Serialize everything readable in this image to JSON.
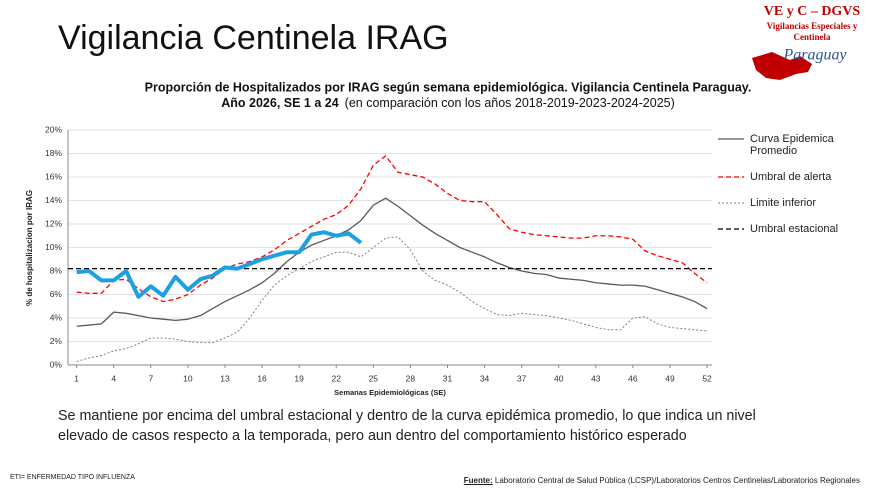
{
  "slide_title": "Vigilancia Centinela IRAG",
  "logo": {
    "name": "VE y C – DGVS",
    "line1": "Vigilancias Especiales y",
    "line2": "Centinela",
    "country": "Paraguay"
  },
  "chart_data": {
    "type": "line",
    "title": "Proporción de Hospitalizados por IRAG según semana epidemiológica. Vigilancia Centinela Paraguay.",
    "title_line2": "Año 2026, SE 1 a 24",
    "subtitle": "(en comparación con los años 2018-2019-2023-2024-2025)",
    "xlabel": "Semanas Epidemiológicas (SE)",
    "ylabel": "% de hospitalizacion por IRAG",
    "x": [
      1,
      2,
      3,
      4,
      5,
      6,
      7,
      8,
      9,
      10,
      11,
      12,
      13,
      14,
      15,
      16,
      17,
      18,
      19,
      20,
      21,
      22,
      23,
      24,
      25,
      26,
      27,
      28,
      29,
      30,
      31,
      32,
      33,
      34,
      35,
      36,
      37,
      38,
      39,
      40,
      41,
      42,
      43,
      44,
      45,
      46,
      47,
      48,
      49,
      50,
      51,
      52
    ],
    "xlim": [
      0.3,
      52.4
    ],
    "xticks": [
      1,
      4,
      7,
      10,
      13,
      16,
      19,
      22,
      25,
      28,
      31,
      34,
      37,
      40,
      43,
      46,
      49,
      52
    ],
    "ylim": [
      0,
      20
    ],
    "yticks": [
      {
        "value": 0,
        "label": "0%"
      },
      {
        "value": 2,
        "label": "2%"
      },
      {
        "value": 4,
        "label": "4%"
      },
      {
        "value": 6,
        "label": "6%"
      },
      {
        "value": 8,
        "label": "8%"
      },
      {
        "value": 10,
        "label": "10%"
      },
      {
        "value": 12,
        "label": "12%"
      },
      {
        "value": 14,
        "label": "14%"
      },
      {
        "value": 16,
        "label": "16%"
      },
      {
        "value": 18,
        "label": "18%"
      },
      {
        "value": 20,
        "label": "20%"
      }
    ],
    "grid": true,
    "legend": "right",
    "series": [
      {
        "name": "Curva Epidemica Promedio",
        "color": "#595959",
        "line_style": "solid",
        "values": [
          3.3,
          3.4,
          3.5,
          4.5,
          4.4,
          4.2,
          4.0,
          3.9,
          3.8,
          3.9,
          4.2,
          4.8,
          5.4,
          5.9,
          6.4,
          7.0,
          7.8,
          8.8,
          9.6,
          10.2,
          10.6,
          11.0,
          11.5,
          12.3,
          13.6,
          14.2,
          13.5,
          12.7,
          11.9,
          11.2,
          10.6,
          10.0,
          9.6,
          9.2,
          8.7,
          8.3,
          8.0,
          7.8,
          7.7,
          7.4,
          7.3,
          7.2,
          7.0,
          6.9,
          6.8,
          6.8,
          6.7,
          6.4,
          6.1,
          5.8,
          5.4,
          4.8
        ]
      },
      {
        "name": "Umbral de alerta",
        "color": "#ff0000",
        "line_style": "dashed",
        "values": [
          6.2,
          6.1,
          6.1,
          7.2,
          7.3,
          6.5,
          5.8,
          5.4,
          5.6,
          6.0,
          6.8,
          7.4,
          8.2,
          8.6,
          8.8,
          9.2,
          9.8,
          10.6,
          11.2,
          11.8,
          12.4,
          12.8,
          13.6,
          15.0,
          17.0,
          17.8,
          16.4,
          16.2,
          16.0,
          15.4,
          14.6,
          14.0,
          13.9,
          13.9,
          12.8,
          11.6,
          11.3,
          11.1,
          11.0,
          10.9,
          10.8,
          10.8,
          11.0,
          11.0,
          10.9,
          10.7,
          9.7,
          9.3,
          9.0,
          8.7,
          7.8,
          7.0
        ]
      },
      {
        "name": "Limite inferior",
        "color": "#808080",
        "line_style": "dotted",
        "values": [
          0.3,
          0.6,
          0.8,
          1.2,
          1.4,
          1.8,
          2.3,
          2.3,
          2.2,
          2.0,
          1.9,
          1.9,
          2.3,
          2.8,
          4.0,
          5.5,
          6.8,
          7.6,
          8.2,
          8.8,
          9.2,
          9.6,
          9.6,
          9.2,
          10.0,
          10.8,
          10.9,
          9.8,
          8.0,
          7.2,
          6.8,
          6.2,
          5.4,
          4.8,
          4.3,
          4.2,
          4.4,
          4.3,
          4.2,
          4.0,
          3.8,
          3.5,
          3.2,
          3.0,
          3.0,
          4.0,
          4.1,
          3.5,
          3.2,
          3.1,
          3.0,
          2.9
        ]
      },
      {
        "name": "Umbral estacional",
        "color": "#000000",
        "line_style": "dashed",
        "value": 8.2
      },
      {
        "color": "#1ba1e2",
        "line_style": "thick",
        "values": [
          7.9,
          8.0,
          7.2,
          7.2,
          8.0,
          5.8,
          6.7,
          5.9,
          7.5,
          6.4,
          7.3,
          7.6,
          8.3,
          8.2,
          8.6,
          9.0,
          9.3,
          9.6,
          9.6,
          11.1,
          11.3,
          11.0,
          11.2,
          10.4,
          null,
          null,
          null,
          null,
          null,
          null,
          null,
          null,
          null,
          null,
          null,
          null,
          null,
          null,
          null,
          null,
          null,
          null,
          null,
          null,
          null,
          null,
          null,
          null,
          null,
          null,
          null,
          null
        ]
      }
    ]
  },
  "note": "Se mantiene por encima del umbral estacional y dentro de la curva epidémica promedio, lo que indica un nivel elevado de casos respecto a la temporada, pero aun dentro del comportamiento histórico esperado",
  "footer": {
    "abbrev": "ETI= ENFERMEDAD TIPO INFLUENZA",
    "source_label": "Fuente:",
    "source": "Laboratorio Central de Salud Pública (LCSP)/Laboratorios Centros Centinelas/Laboratorios Regionales"
  }
}
